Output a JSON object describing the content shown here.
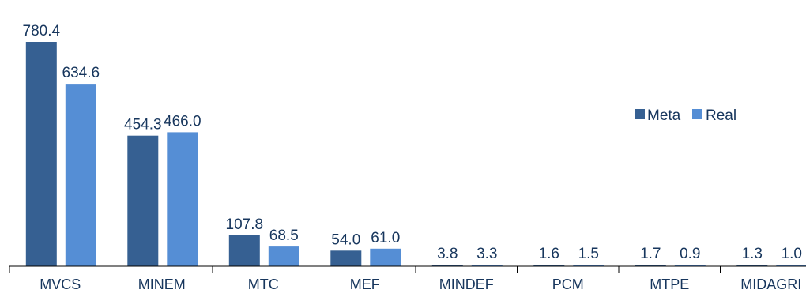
{
  "chart_data": {
    "type": "bar",
    "title": "",
    "xlabel": "",
    "ylabel": "",
    "categories": [
      "MVCS",
      "MINEM",
      "MTC",
      "MEF",
      "MINDEF",
      "PCM",
      "MTPE",
      "MIDAGRI"
    ],
    "series": [
      {
        "name": "Meta",
        "color": "#366092",
        "values": [
          780.4,
          454.3,
          107.8,
          54.0,
          3.8,
          1.6,
          1.7,
          1.3
        ]
      },
      {
        "name": "Real",
        "color": "#558ed5",
        "values": [
          634.6,
          466.0,
          68.5,
          61.0,
          3.3,
          1.5,
          0.9,
          1.0
        ]
      }
    ],
    "value_labels": [
      [
        "780.4",
        "454.3",
        "107.8",
        "54.0",
        "3.8",
        "1.6",
        "1.7",
        "1.3"
      ],
      [
        "634.6",
        "466.0",
        "68.5",
        "61.0",
        "3.3",
        "1.5",
        "0.9",
        "1.0"
      ]
    ],
    "ylim": [
      0,
      780.4
    ],
    "grid": false,
    "legend_position": "right"
  }
}
